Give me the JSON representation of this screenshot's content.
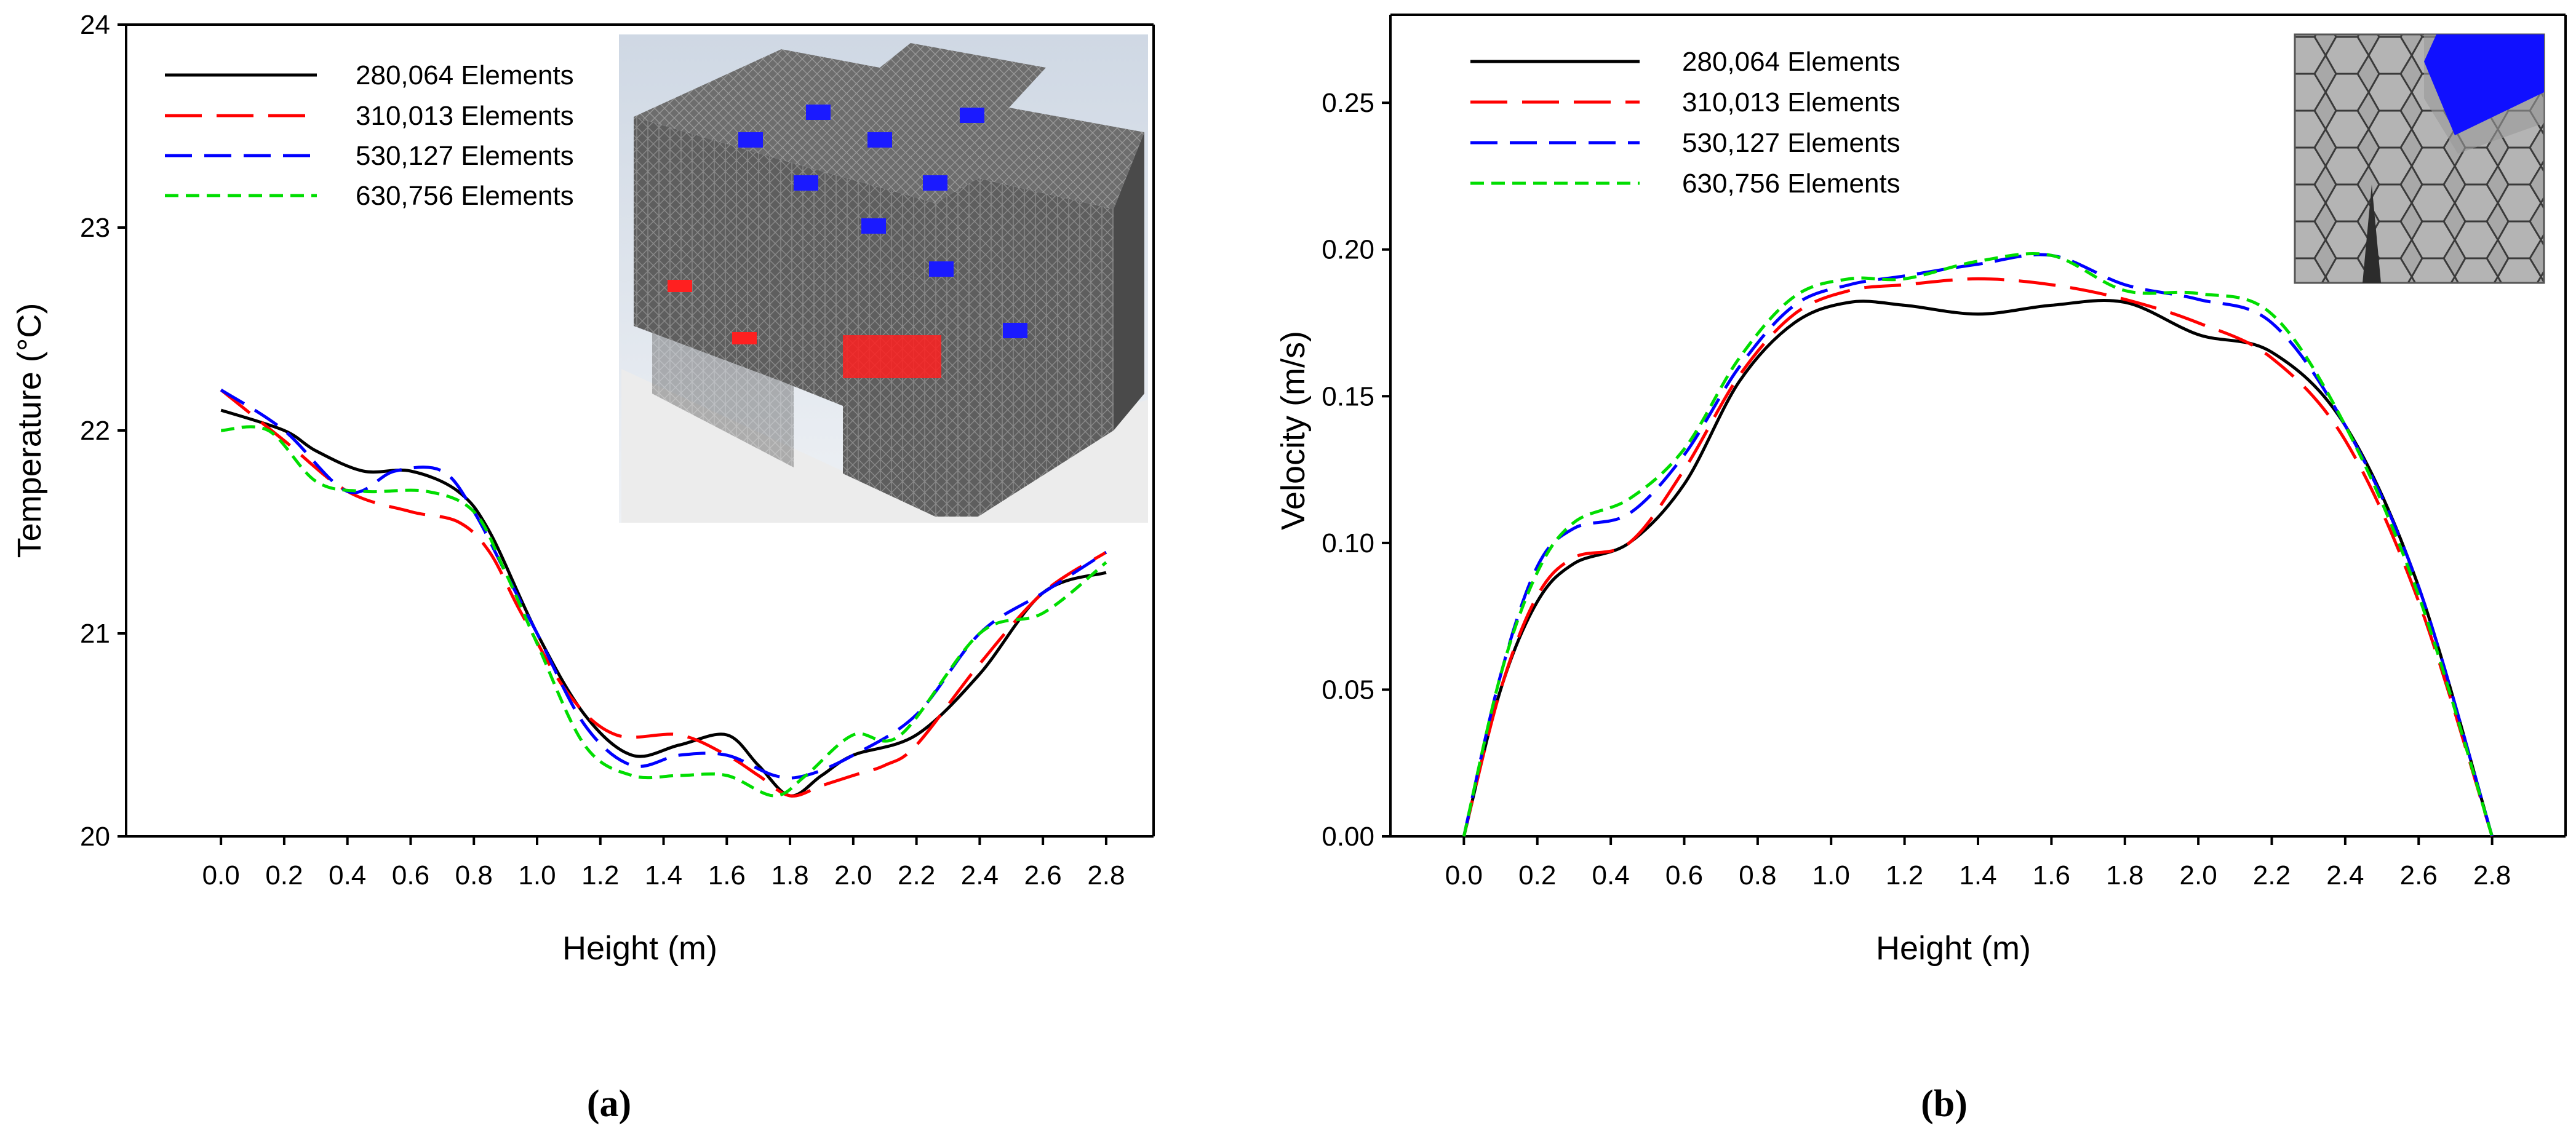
{
  "chart_data": [
    {
      "type": "line",
      "panel": "(a)",
      "xlabel": "Height (m)",
      "ylabel": "Temperature (°C)",
      "xlim": [
        -0.3,
        2.95
      ],
      "ylim": [
        20,
        24
      ],
      "xticks": [
        "0.0",
        "0.2",
        "0.4",
        "0.6",
        "0.8",
        "1.0",
        "1.2",
        "1.4",
        "1.6",
        "1.8",
        "2.0",
        "2.2",
        "2.4",
        "2.6",
        "2.8"
      ],
      "yticks": [
        "20",
        "21",
        "22",
        "23",
        "24"
      ],
      "legend_position": "top-left",
      "inset_description": "3D mesh view of building model",
      "series": [
        {
          "name": "280,064 Elements",
          "color": "#000000",
          "dash": "solid",
          "x": [
            0,
            0.2,
            0.3,
            0.45,
            0.6,
            0.75,
            0.85,
            1.0,
            1.15,
            1.3,
            1.45,
            1.6,
            1.7,
            1.8,
            1.9,
            2.0,
            2.2,
            2.4,
            2.6,
            2.8
          ],
          "y": [
            22.1,
            22.0,
            21.9,
            21.8,
            21.8,
            21.7,
            21.5,
            21.0,
            20.6,
            20.4,
            20.45,
            20.5,
            20.35,
            20.2,
            20.3,
            20.4,
            20.5,
            20.8,
            21.2,
            21.3
          ]
        },
        {
          "name": "310,013 Elements",
          "color": "#ff0000",
          "dash": "long",
          "x": [
            0,
            0.2,
            0.4,
            0.6,
            0.75,
            0.85,
            0.95,
            1.1,
            1.25,
            1.45,
            1.6,
            1.7,
            1.8,
            1.9,
            2.0,
            2.1,
            2.2,
            2.4,
            2.6,
            2.8
          ],
          "y": [
            22.2,
            21.95,
            21.7,
            21.6,
            21.55,
            21.4,
            21.1,
            20.7,
            20.5,
            20.5,
            20.4,
            20.3,
            20.2,
            20.25,
            20.3,
            20.35,
            20.45,
            20.85,
            21.2,
            21.4
          ]
        },
        {
          "name": "530,127 Elements",
          "color": "#0000ff",
          "dash": "medium",
          "x": [
            0,
            0.2,
            0.4,
            0.55,
            0.7,
            0.8,
            0.9,
            1.0,
            1.15,
            1.3,
            1.45,
            1.6,
            1.75,
            1.85,
            2.0,
            2.2,
            2.4,
            2.6,
            2.8
          ],
          "y": [
            22.2,
            22.0,
            21.7,
            21.8,
            21.8,
            21.6,
            21.3,
            21.0,
            20.55,
            20.35,
            20.4,
            20.4,
            20.3,
            20.3,
            20.4,
            20.6,
            21.0,
            21.2,
            21.4
          ]
        },
        {
          "name": "630,756 Elements",
          "color": "#00dd00",
          "dash": "short",
          "x": [
            0,
            0.15,
            0.3,
            0.45,
            0.65,
            0.8,
            0.9,
            1.0,
            1.15,
            1.3,
            1.45,
            1.6,
            1.75,
            1.85,
            2.0,
            2.15,
            2.4,
            2.6,
            2.8
          ],
          "y": [
            22.0,
            22.0,
            21.75,
            21.7,
            21.7,
            21.6,
            21.3,
            20.95,
            20.45,
            20.3,
            20.3,
            20.3,
            20.2,
            20.3,
            20.5,
            20.5,
            21.0,
            21.1,
            21.35
          ]
        }
      ]
    },
    {
      "type": "line",
      "panel": "(b)",
      "xlabel": "Height (m)",
      "ylabel": "Velocity (m/s)",
      "xlim": [
        -0.2,
        3.0
      ],
      "ylim": [
        0,
        0.28
      ],
      "xticks": [
        "0.0",
        "0.2",
        "0.4",
        "0.6",
        "0.8",
        "1.0",
        "1.2",
        "1.4",
        "1.6",
        "1.8",
        "2.0",
        "2.2",
        "2.4",
        "2.6",
        "2.8"
      ],
      "yticks": [
        "0.00",
        "0.05",
        "0.10",
        "0.15",
        "0.20",
        "0.25"
      ],
      "legend_position": "top-left",
      "inset_description": "close-up mesh view",
      "series": [
        {
          "name": "280,064 Elements",
          "color": "#000000",
          "dash": "solid",
          "x": [
            0,
            0.1,
            0.2,
            0.3,
            0.45,
            0.6,
            0.75,
            0.9,
            1.05,
            1.2,
            1.4,
            1.6,
            1.8,
            2.0,
            2.2,
            2.4,
            2.6,
            2.8
          ],
          "y": [
            0,
            0.05,
            0.08,
            0.093,
            0.1,
            0.12,
            0.155,
            0.175,
            0.182,
            0.181,
            0.178,
            0.181,
            0.182,
            0.171,
            0.165,
            0.14,
            0.085,
            0
          ]
        },
        {
          "name": "310,013 Elements",
          "color": "#ff0000",
          "dash": "long",
          "x": [
            0,
            0.1,
            0.2,
            0.3,
            0.45,
            0.6,
            0.75,
            0.9,
            1.05,
            1.2,
            1.4,
            1.6,
            1.8,
            2.0,
            2.2,
            2.4,
            2.6,
            2.8
          ],
          "y": [
            0,
            0.05,
            0.082,
            0.095,
            0.1,
            0.125,
            0.157,
            0.178,
            0.186,
            0.188,
            0.19,
            0.188,
            0.183,
            0.175,
            0.163,
            0.135,
            0.08,
            0
          ]
        },
        {
          "name": "530,127 Elements",
          "color": "#0000ff",
          "dash": "medium",
          "x": [
            0,
            0.1,
            0.2,
            0.3,
            0.45,
            0.6,
            0.75,
            0.9,
            1.05,
            1.2,
            1.4,
            1.6,
            1.8,
            2.0,
            2.2,
            2.4,
            2.6,
            2.8
          ],
          "y": [
            0,
            0.055,
            0.092,
            0.105,
            0.11,
            0.13,
            0.16,
            0.181,
            0.188,
            0.191,
            0.195,
            0.198,
            0.188,
            0.183,
            0.175,
            0.14,
            0.085,
            0
          ]
        },
        {
          "name": "630,756 Elements",
          "color": "#00dd00",
          "dash": "short",
          "x": [
            0,
            0.1,
            0.2,
            0.3,
            0.45,
            0.6,
            0.75,
            0.9,
            1.05,
            1.2,
            1.4,
            1.6,
            1.8,
            2.0,
            2.2,
            2.4,
            2.6,
            2.8
          ],
          "y": [
            0,
            0.055,
            0.09,
            0.107,
            0.115,
            0.132,
            0.163,
            0.184,
            0.19,
            0.19,
            0.196,
            0.198,
            0.186,
            0.185,
            0.178,
            0.14,
            0.082,
            0
          ]
        }
      ]
    }
  ]
}
